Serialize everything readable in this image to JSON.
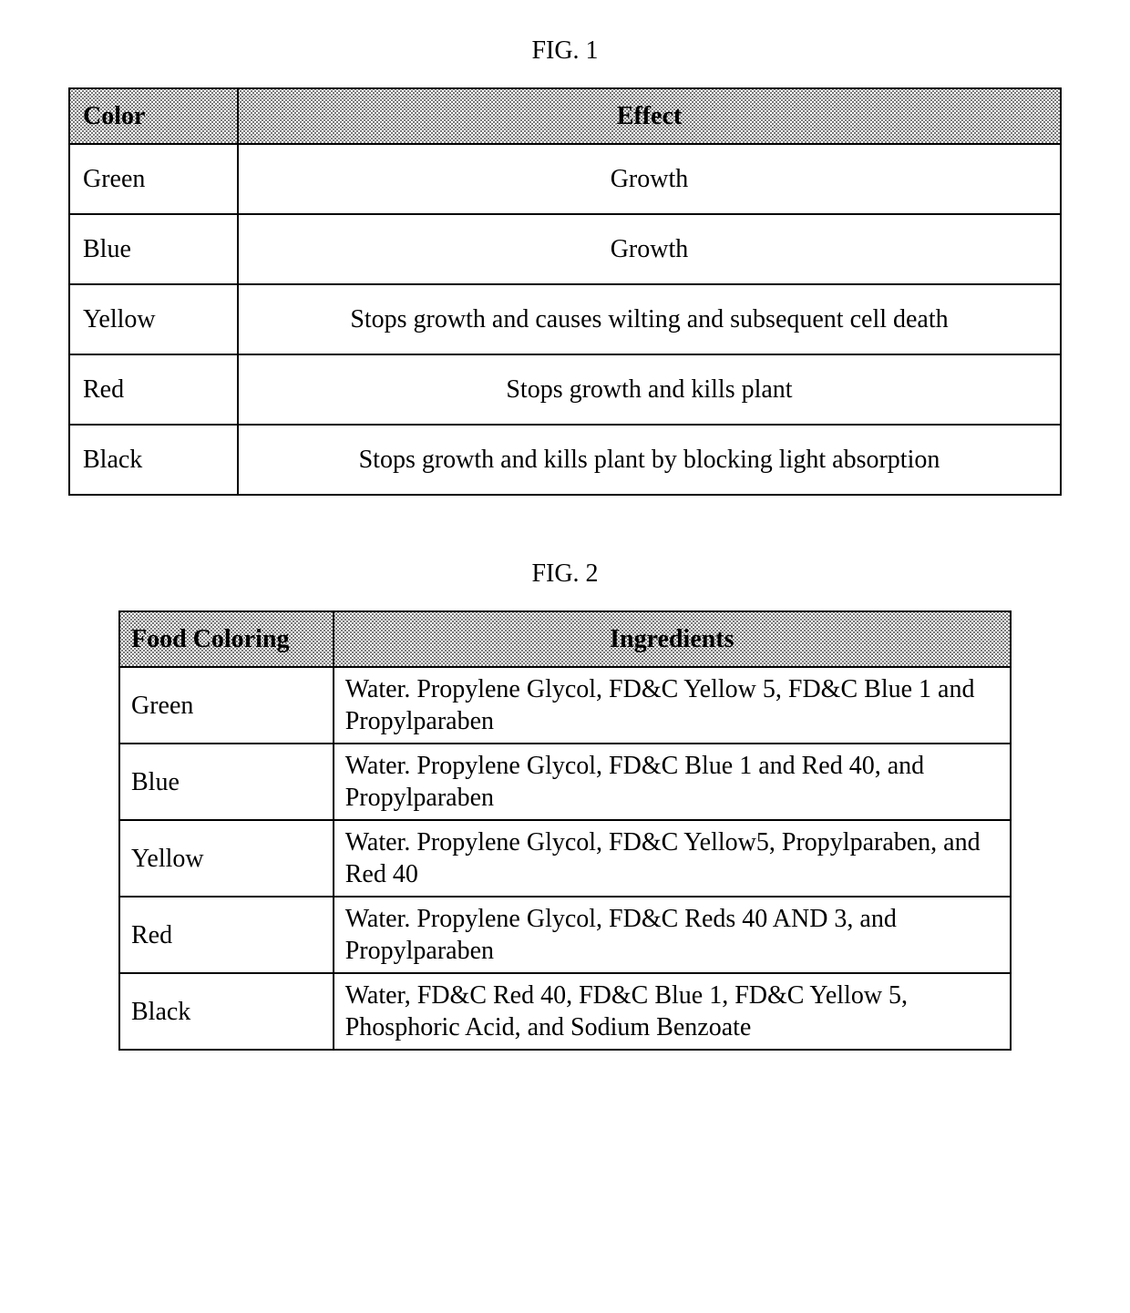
{
  "fig1": {
    "caption": "FIG. 1",
    "col_color_width_pct": 17,
    "col_effect_width_pct": 83,
    "headers": {
      "color": "Color",
      "effect": "Effect"
    },
    "rows": [
      {
        "color": "Green",
        "effect": "Growth"
      },
      {
        "color": "Blue",
        "effect": "Growth"
      },
      {
        "color": "Yellow",
        "effect": "Stops growth and causes wilting and subsequent cell death"
      },
      {
        "color": "Red",
        "effect": "Stops growth and kills plant"
      },
      {
        "color": "Black",
        "effect": "Stops growth and kills plant by blocking light absorption"
      }
    ]
  },
  "fig2": {
    "caption": "FIG. 2",
    "col_food_width_pct": 24,
    "col_ingr_width_pct": 76,
    "headers": {
      "food": "Food Coloring",
      "ingredients": "Ingredients"
    },
    "rows": [
      {
        "food": "Green",
        "ingredients": "Water. Propylene Glycol, FD&C Yellow 5, FD&C Blue 1 and Propylparaben"
      },
      {
        "food": "Blue",
        "ingredients": "Water. Propylene Glycol, FD&C Blue 1 and Red 40, and Propylparaben"
      },
      {
        "food": "Yellow",
        "ingredients": "Water. Propylene Glycol, FD&C Yellow5, Propylparaben, and Red 40"
      },
      {
        "food": "Red",
        "ingredients": "Water. Propylene Glycol, FD&C Reds 40 AND 3, and Propylparaben"
      },
      {
        "food": "Black",
        "ingredients": "Water, FD&C Red 40, FD&C Blue 1, FD&C Yellow 5, Phosphoric Acid, and Sodium Benzoate"
      }
    ]
  }
}
